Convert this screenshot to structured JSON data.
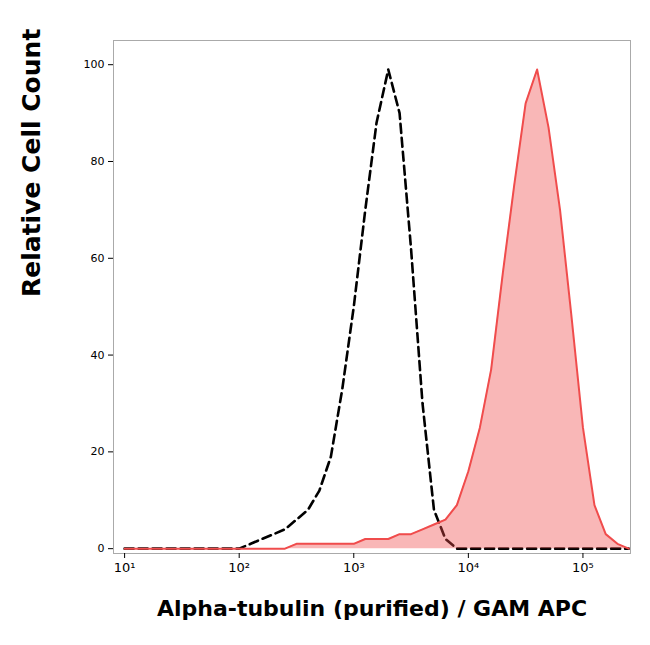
{
  "chart_data": {
    "type": "histogram",
    "x_label": "Alpha-tubulin (purified) / GAM APC",
    "y_label": "Relative Cell Count",
    "log": "x",
    "grid": false,
    "xlim": [
      8,
      260000
    ],
    "ylim": [
      -1,
      105
    ],
    "xticks": [
      {
        "value": 10,
        "label": "10¹"
      },
      {
        "value": 100,
        "label": "10²"
      },
      {
        "value": 1000,
        "label": "10³"
      },
      {
        "value": 10000,
        "label": "10⁴"
      },
      {
        "value": 100000,
        "label": "10⁵"
      }
    ],
    "yticks": [
      0,
      20,
      40,
      60,
      80,
      100
    ],
    "x": [
      10,
      12.6,
      15.8,
      20,
      25.1,
      31.6,
      39.8,
      50.1,
      63.1,
      79.4,
      100,
      126,
      158,
      200,
      251,
      316,
      398,
      501,
      631,
      794,
      1000,
      1260,
      1580,
      2000,
      2510,
      3160,
      3980,
      5010,
      6310,
      7940,
      10000,
      12600,
      15800,
      20000,
      25100,
      31600,
      39800,
      50100,
      63100,
      79400,
      100000,
      126000,
      158000,
      200000,
      251000
    ],
    "series": [
      {
        "type": "line",
        "color": "#000000",
        "line_style": "dashed",
        "values": [
          0,
          0,
          0,
          0,
          0,
          0,
          0,
          0,
          0,
          0,
          0,
          1,
          2,
          3,
          4,
          6,
          8,
          12,
          19,
          33,
          50,
          70,
          88,
          99,
          90,
          62,
          30,
          8,
          2,
          0,
          0,
          0,
          0,
          0,
          0,
          0,
          0,
          0,
          0,
          0,
          0,
          0,
          0,
          0,
          0
        ]
      },
      {
        "type": "area",
        "color": "#f04c4c",
        "line_style": "solid",
        "values": [
          0,
          0,
          0,
          0,
          0,
          0,
          0,
          0,
          0,
          0,
          0,
          0,
          0,
          0,
          0,
          1,
          1,
          1,
          1,
          1,
          1,
          2,
          2,
          2,
          3,
          3,
          4,
          5,
          6,
          9,
          16,
          25,
          37,
          57,
          75,
          92,
          99,
          87,
          70,
          48,
          25,
          9,
          3,
          1,
          0
        ]
      }
    ]
  }
}
